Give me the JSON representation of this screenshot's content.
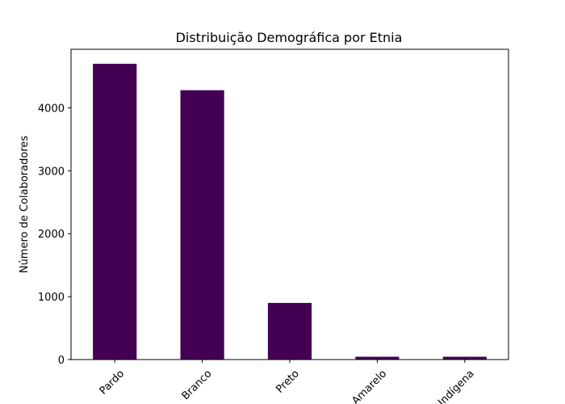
{
  "chart_data": {
    "type": "bar",
    "title": "Distribuição Demográfica por Etnia",
    "xlabel": "",
    "ylabel": "Número de Colaboradores",
    "categories": [
      "Pardo",
      "Branco",
      "Preto",
      "Amarelo",
      "Indígena"
    ],
    "values": [
      4700,
      4280,
      900,
      45,
      45
    ],
    "ylim": [
      0,
      4930
    ],
    "yticks": [
      0,
      1000,
      2000,
      3000,
      4000
    ],
    "bar_color": "#440154",
    "grid": false,
    "legend": "none"
  }
}
